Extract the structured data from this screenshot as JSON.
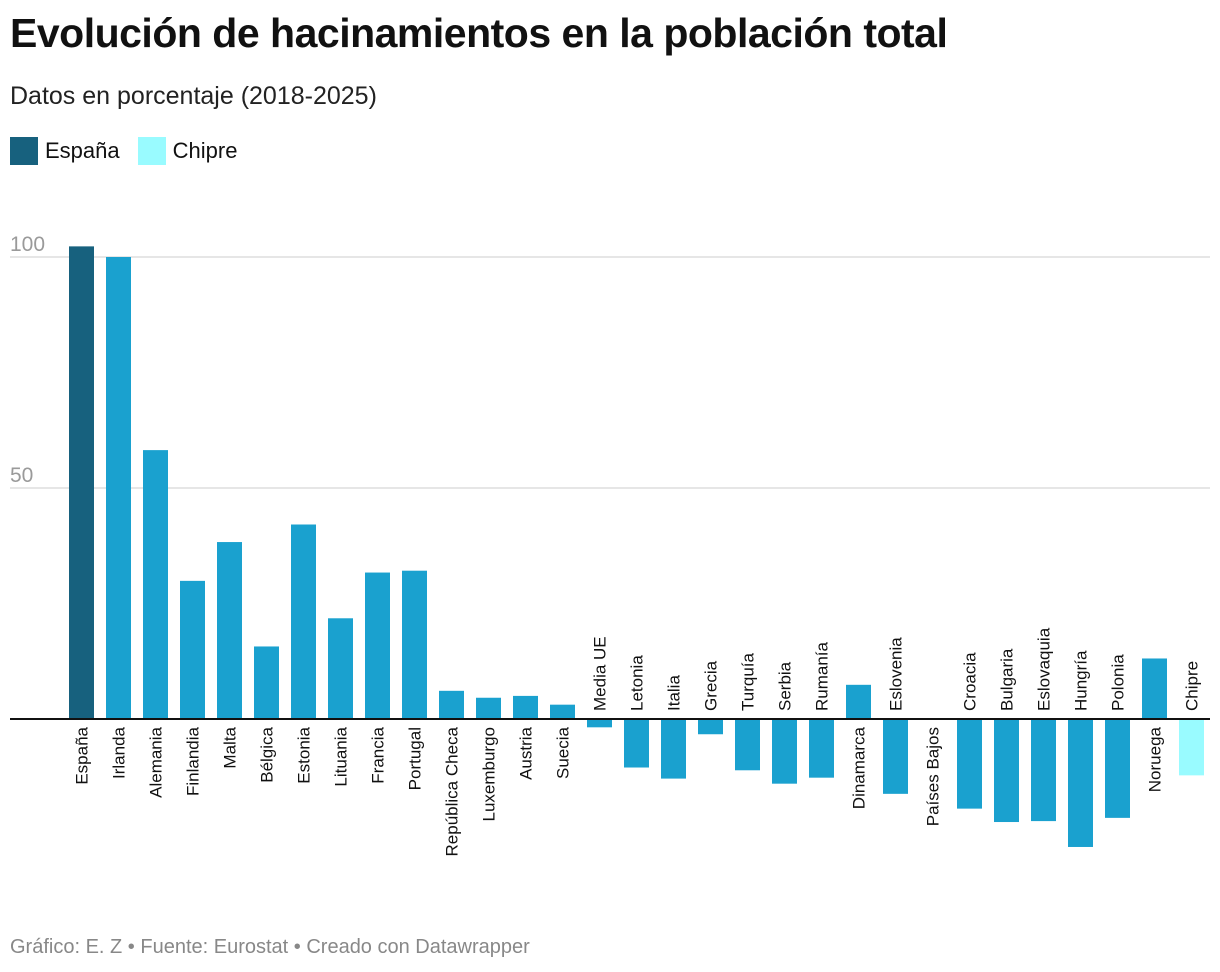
{
  "title": "Evolución de hacinamientos en la población total",
  "subtitle": "Datos en porcentaje (2018-2025)",
  "legend": [
    {
      "label": "España",
      "color": "#17617e"
    },
    {
      "label": "Chipre",
      "color": "#99fbff"
    }
  ],
  "footer": "Gráfico: E. Z • Fuente: Eurostat • Creado con Datawrapper",
  "colors": {
    "default": "#1aa1cf",
    "highlight": "#17617e",
    "light": "#99fbff",
    "grid": "#dddddd",
    "axis": "#111111",
    "tick": "#9a9a9a"
  },
  "chart_data": {
    "type": "bar",
    "orientation": "vertical",
    "ylim": [
      -28,
      103
    ],
    "yticks": [
      50,
      100
    ],
    "grid": true,
    "legend_position": "top-left",
    "categories": [
      "España",
      "Irlanda",
      "Alemania",
      "Finlandia",
      "Malta",
      "Bélgica",
      "Estonia",
      "Lituania",
      "Francia",
      "Portugal",
      "República Checa",
      "Luxemburgo",
      "Austria",
      "Suecia",
      "Media UE",
      "Letonia",
      "Italia",
      "Grecia",
      "Turquía",
      "Serbia",
      "Rumanía",
      "Dinamarca",
      "Eslovenia",
      "Países Bajos",
      "Croacia",
      "Bulgaria",
      "Eslovaquia",
      "Hungría",
      "Polonia",
      "Noruega",
      "Chipre"
    ],
    "values": [
      102.3,
      100.0,
      58.2,
      29.9,
      38.3,
      15.7,
      42.1,
      21.8,
      31.7,
      32.1,
      6.1,
      4.6,
      5.0,
      3.1,
      -1.8,
      -10.5,
      -12.9,
      -3.3,
      -11.1,
      -14.0,
      -12.7,
      7.4,
      -16.2,
      0.0,
      -19.4,
      -22.3,
      -22.1,
      -27.7,
      -21.4,
      13.1,
      -12.2
    ],
    "bar_colors": [
      "#17617e",
      "#1aa1cf",
      "#1aa1cf",
      "#1aa1cf",
      "#1aa1cf",
      "#1aa1cf",
      "#1aa1cf",
      "#1aa1cf",
      "#1aa1cf",
      "#1aa1cf",
      "#1aa1cf",
      "#1aa1cf",
      "#1aa1cf",
      "#1aa1cf",
      "#1aa1cf",
      "#1aa1cf",
      "#1aa1cf",
      "#1aa1cf",
      "#1aa1cf",
      "#1aa1cf",
      "#1aa1cf",
      "#1aa1cf",
      "#1aa1cf",
      "#1aa1cf",
      "#1aa1cf",
      "#1aa1cf",
      "#1aa1cf",
      "#1aa1cf",
      "#1aa1cf",
      "#1aa1cf",
      "#99fbff"
    ]
  }
}
